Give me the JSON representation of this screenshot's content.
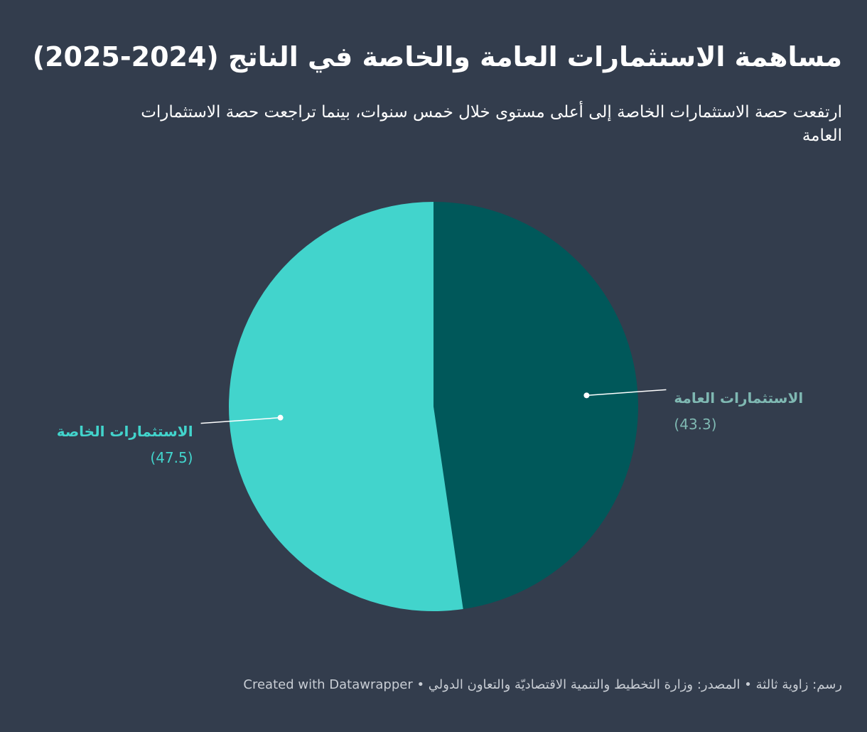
{
  "chart_data": {
    "type": "pie",
    "title": "مساهمة الاستثمارات العامة والخاصة في الناتج (2024-2025)",
    "subtitle": "ارتفعت حصة الاستثمارات الخاصة إلى أعلى مستوى خلال خمس سنوات، بينما تراجعت حصة الاستثمارات العامة",
    "categories": [
      "الاستثمارات العامة",
      "الاستثمارات الخاصة"
    ],
    "values": [
      43.3,
      47.5
    ],
    "value_labels": [
      "(43.3)",
      "(47.5)"
    ],
    "colors": [
      "#00585a",
      "#42d4cc"
    ],
    "label_colors": [
      "#7fb8b2",
      "#42d4cc"
    ],
    "byline": "رسم: زاوية ثالثة",
    "source": "المصدر: وزارة التخطيط والتنمية الاقتصاديّة والتعاون الدولي",
    "credit": "Created with Datawrapper"
  }
}
